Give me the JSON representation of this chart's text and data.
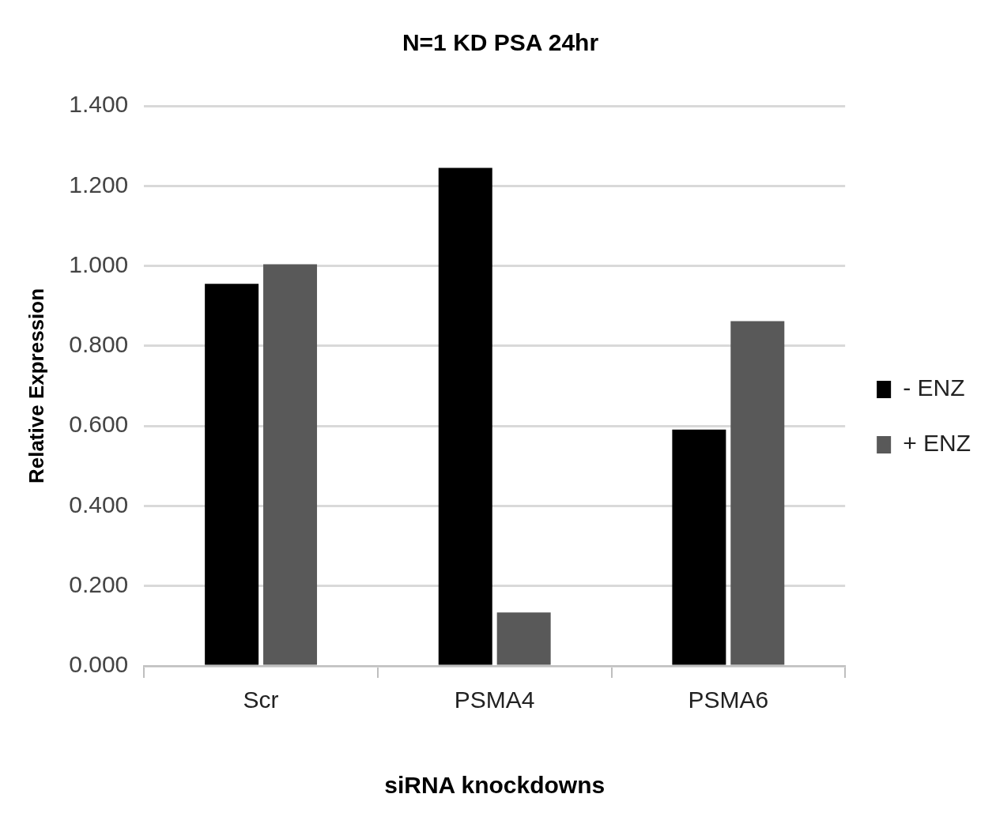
{
  "chart_data": {
    "type": "bar",
    "title": "N=1 KD PSA 24hr",
    "xlabel": "siRNA knockdowns",
    "ylabel": "Relative Expression",
    "categories": [
      "Scr",
      "PSMA4",
      "PSMA6"
    ],
    "series": [
      {
        "name": "- ENZ",
        "color": "#000000",
        "values": [
          0.955,
          1.245,
          0.591
        ]
      },
      {
        "name": "+ ENZ",
        "color": "#595959",
        "values": [
          1.004,
          0.134,
          0.862
        ]
      }
    ],
    "ylim": [
      0,
      1.4
    ],
    "yticks": [
      {
        "value": 0,
        "label": "0.000"
      },
      {
        "value": 0.2,
        "label": "0.200"
      },
      {
        "value": 0.4,
        "label": "0.400"
      },
      {
        "value": 0.6,
        "label": "0.600"
      },
      {
        "value": 0.8,
        "label": "0.800"
      },
      {
        "value": 1.0,
        "label": "1.000"
      },
      {
        "value": 1.2,
        "label": "1.200"
      },
      {
        "value": 1.4,
        "label": "1.400"
      }
    ],
    "grid": "y",
    "legend": "right"
  }
}
